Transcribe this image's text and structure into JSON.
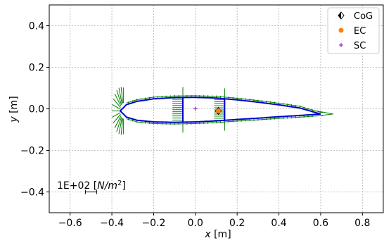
{
  "chart_data": {
    "type": "scatter",
    "description_free": true,
    "xlabel_var": "x",
    "xlabel_unit": " [m]",
    "ylabel_var": "y",
    "ylabel_unit": " [m]",
    "xlim": [
      -0.7,
      0.9
    ],
    "ylim": [
      -0.5,
      0.5
    ],
    "xticks": [
      -0.6,
      -0.4,
      -0.2,
      0.0,
      0.2,
      0.4,
      0.6,
      0.8
    ],
    "xtick_labels": [
      "−0.6",
      "−0.4",
      "−0.2",
      "0.0",
      "0.2",
      "0.4",
      "0.6",
      "0.8"
    ],
    "yticks": [
      -0.4,
      -0.2,
      0.0,
      0.2,
      0.4
    ],
    "ytick_labels": [
      "−0.4",
      "−0.2",
      "0.0",
      "0.2",
      "0.4"
    ],
    "grid": true,
    "legend_position": "top-right",
    "legend": [
      {
        "name": "CoG",
        "marker": "diamond-half",
        "color": "#000000"
      },
      {
        "name": "EC",
        "marker": "circle",
        "color": "#ff7f0e"
      },
      {
        "name": "SC",
        "marker": "plus",
        "color": "#9400d3"
      }
    ],
    "points": {
      "CoG": {
        "x": 0.11,
        "y": -0.01
      },
      "EC": {
        "x": 0.11,
        "y": -0.01
      },
      "SC": {
        "x": 0.0,
        "y": 0.0
      }
    },
    "airfoil": {
      "leading_edge_x": -0.36,
      "trailing_edge_x": 0.6,
      "upper_y": [
        [
          -0.36,
          -0.01
        ],
        [
          -0.33,
          0.02
        ],
        [
          -0.28,
          0.036
        ],
        [
          -0.2,
          0.048
        ],
        [
          -0.1,
          0.054
        ],
        [
          0.0,
          0.055
        ],
        [
          0.1,
          0.052
        ],
        [
          0.2,
          0.043
        ],
        [
          0.3,
          0.032
        ],
        [
          0.4,
          0.019
        ],
        [
          0.5,
          0.004
        ],
        [
          0.6,
          -0.025
        ]
      ],
      "lower_y": [
        [
          -0.36,
          -0.01
        ],
        [
          -0.33,
          -0.04
        ],
        [
          -0.28,
          -0.055
        ],
        [
          -0.2,
          -0.063
        ],
        [
          -0.1,
          -0.065
        ],
        [
          0.0,
          -0.063
        ],
        [
          0.1,
          -0.058
        ],
        [
          0.2,
          -0.051
        ],
        [
          0.3,
          -0.045
        ],
        [
          0.4,
          -0.038
        ],
        [
          0.5,
          -0.032
        ],
        [
          0.6,
          -0.025
        ]
      ],
      "spar_x": [
        -0.06,
        0.14
      ],
      "outline_color": "#0000cd",
      "flow_color": "#008000"
    },
    "scale_bar_label_prefix": "1E+02 [",
    "scale_bar_label_unit": "N/m",
    "scale_bar_label_exp": "2",
    "scale_bar_label_suffix": "]",
    "scale_bar_position": {
      "x": -0.5,
      "y": -0.4
    }
  }
}
